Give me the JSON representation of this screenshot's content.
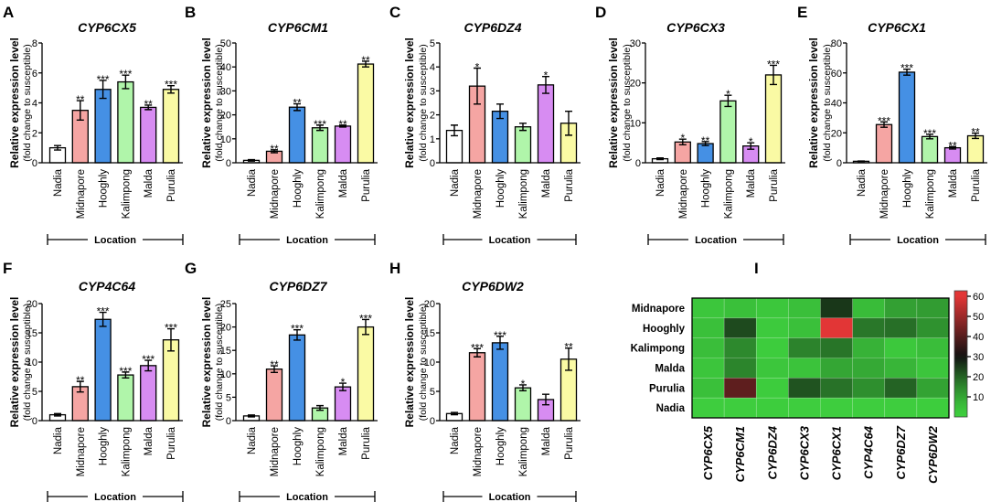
{
  "location_colors": {
    "Nadia": "#ffffff",
    "Midnapore": "#f5a5a3",
    "Hooghly": "#4590e4",
    "Kalimpong": "#b0f5aa",
    "Malda": "#d78cf2",
    "Purulia": "#fafaa4"
  },
  "chart_data": [
    {
      "panel": "A",
      "type": "bar",
      "title": "CYP6CX5",
      "categories": [
        "Nadia",
        "Midnapore",
        "Hooghly",
        "Kalimpong",
        "Malda",
        "Purulia"
      ],
      "values": [
        1.0,
        3.5,
        4.9,
        5.4,
        3.7,
        4.9
      ],
      "errors": [
        0.15,
        0.65,
        0.6,
        0.45,
        0.15,
        0.25
      ],
      "significance": [
        "",
        "**",
        "***",
        "***",
        "**",
        "***"
      ],
      "ylabel": "Relative expression level",
      "ylabel_sub": "(fold change to susceptible)",
      "xlabel": "Location",
      "ylim": [
        0,
        8
      ],
      "yticks": [
        0,
        2,
        4,
        6,
        8
      ]
    },
    {
      "panel": "B",
      "type": "bar",
      "title": "CYP6CM1",
      "categories": [
        "Nadia",
        "Midnapore",
        "Hooghly",
        "Kalimpong",
        "Malda",
        "Purulia"
      ],
      "values": [
        1.0,
        4.8,
        23.2,
        14.6,
        15.3,
        41.2
      ],
      "errors": [
        0.3,
        0.6,
        1.4,
        1.1,
        0.4,
        1.2
      ],
      "significance": [
        "",
        "**",
        "**",
        "***",
        "**",
        "**"
      ],
      "ylabel": "Relative expression level",
      "ylabel_sub": "(fold change to susceptible)",
      "xlabel": "Location",
      "ylim": [
        0,
        50
      ],
      "yticks": [
        0,
        10,
        20,
        30,
        40,
        50
      ]
    },
    {
      "panel": "C",
      "type": "bar",
      "title": "CYP6DZ4",
      "categories": [
        "Nadia",
        "Midnapore",
        "Hooghly",
        "Kalimpong",
        "Malda",
        "Purulia"
      ],
      "values": [
        1.35,
        3.2,
        2.15,
        1.5,
        3.25,
        1.65
      ],
      "errors": [
        0.22,
        0.75,
        0.3,
        0.15,
        0.35,
        0.5
      ],
      "significance": [
        "",
        "*",
        "",
        "",
        "*",
        ""
      ],
      "ylabel": "Relative expression level",
      "ylabel_sub": "(fold change to susceptible)",
      "xlabel": "Location",
      "ylim": [
        0,
        5
      ],
      "yticks": [
        0,
        1,
        2,
        3,
        4,
        5
      ]
    },
    {
      "panel": "D",
      "type": "bar",
      "title": "CYP6CX3",
      "categories": [
        "Nadia",
        "Midnapore",
        "Hooghly",
        "Kalimpong",
        "Malda",
        "Purulia"
      ],
      "values": [
        1.0,
        5.2,
        4.8,
        15.5,
        4.2,
        22.0
      ],
      "errors": [
        0.2,
        0.7,
        0.5,
        1.4,
        0.8,
        2.4
      ],
      "significance": [
        "",
        "*",
        "**",
        "*",
        "*",
        "***"
      ],
      "ylabel": "Relative expression level",
      "ylabel_sub": "(fold change to susceptible)",
      "xlabel": "Location",
      "ylim": [
        0,
        30
      ],
      "yticks": [
        0,
        10,
        20,
        30
      ]
    },
    {
      "panel": "E",
      "type": "bar",
      "title": "CYP6CX1",
      "categories": [
        "Nadia",
        "Midnapore",
        "Hooghly",
        "Kalimpong",
        "Malda",
        "Purulia"
      ],
      "values": [
        1.0,
        25.5,
        60.5,
        17.5,
        10.0,
        18.0
      ],
      "errors": [
        0.2,
        1.8,
        2.0,
        1.5,
        0.8,
        1.8
      ],
      "significance": [
        "",
        "***",
        "***",
        "***",
        "**",
        "**"
      ],
      "ylabel": "Relative expression level",
      "ylabel_sub": "(fold change to susceptible)",
      "xlabel": "Location",
      "ylim": [
        0,
        80
      ],
      "yticks": [
        0,
        20,
        40,
        60,
        80
      ]
    },
    {
      "panel": "F",
      "type": "bar",
      "title": "CYP4C64",
      "categories": [
        "Nadia",
        "Midnapore",
        "Hooghly",
        "Kalimpong",
        "Malda",
        "Purulia"
      ],
      "values": [
        1.0,
        5.8,
        17.3,
        7.8,
        9.4,
        13.8
      ],
      "errors": [
        0.2,
        0.9,
        1.2,
        0.5,
        0.9,
        1.9
      ],
      "significance": [
        "",
        "**",
        "***",
        "***",
        "***",
        "***"
      ],
      "ylabel": "Relative expression level",
      "ylabel_sub": "(fold change to susceptible)",
      "xlabel": "Location",
      "ylim": [
        0,
        20
      ],
      "yticks": [
        0,
        5,
        10,
        15,
        20
      ]
    },
    {
      "panel": "G",
      "type": "bar",
      "title": "CYP6DZ7",
      "categories": [
        "Nadia",
        "Midnapore",
        "Hooghly",
        "Kalimpong",
        "Malda",
        "Purulia"
      ],
      "values": [
        1.0,
        11.0,
        18.3,
        2.7,
        7.2,
        20.0
      ],
      "errors": [
        0.2,
        0.7,
        1.1,
        0.5,
        0.8,
        1.6
      ],
      "significance": [
        "",
        "**",
        "***",
        "",
        "*",
        "***"
      ],
      "ylabel": "Relative expression level",
      "ylabel_sub": "(fold change to susceptible)",
      "xlabel": "Location",
      "ylim": [
        0,
        25
      ],
      "yticks": [
        0,
        5,
        10,
        15,
        20,
        25
      ]
    },
    {
      "panel": "H",
      "type": "bar",
      "title": "CYP6DW2",
      "categories": [
        "Nadia",
        "Midnapore",
        "Hooghly",
        "Kalimpong",
        "Malda",
        "Purulia"
      ],
      "values": [
        1.2,
        11.6,
        13.3,
        5.6,
        3.6,
        10.5
      ],
      "errors": [
        0.2,
        0.7,
        1.1,
        0.5,
        0.9,
        1.9
      ],
      "significance": [
        "",
        "***",
        "***",
        "*",
        "",
        "**"
      ],
      "ylabel": "Relative expression level",
      "ylabel_sub": "(fold change to susceptible)",
      "xlabel": "Location",
      "ylim": [
        0,
        20
      ],
      "yticks": [
        0,
        5,
        10,
        15,
        20
      ]
    },
    {
      "panel": "I",
      "type": "heatmap",
      "rows": [
        "Midnapore",
        "Hooghly",
        "Kalimpong",
        "Malda",
        "Purulia",
        "Nadia"
      ],
      "columns": [
        "CYP6CX5",
        "CYP6CM1",
        "CYP6DZ4",
        "CYP6CX3",
        "CYP6CX1",
        "CYP4C64",
        "CYP6DZ7",
        "CYP6DW2"
      ],
      "values": [
        [
          3.5,
          4.8,
          3.2,
          5.2,
          25.5,
          5.8,
          11.0,
          11.6
        ],
        [
          4.9,
          23.2,
          2.15,
          4.8,
          60.5,
          17.3,
          18.3,
          13.3
        ],
        [
          5.4,
          14.6,
          1.5,
          15.5,
          17.5,
          7.8,
          2.7,
          5.6
        ],
        [
          3.7,
          15.3,
          3.25,
          4.2,
          10.0,
          9.4,
          7.2,
          3.6
        ],
        [
          4.9,
          41.2,
          1.65,
          22.0,
          18.0,
          13.8,
          20.0,
          10.5
        ],
        [
          1.0,
          1.0,
          1.35,
          1.0,
          1.0,
          1.0,
          1.0,
          1.2
        ]
      ],
      "colorbar": {
        "ticks": [
          10,
          20,
          30,
          40,
          50,
          60
        ],
        "range": [
          0,
          60
        ]
      },
      "colorscale": {
        "low": "#3ecf3e",
        "mid": "#101010",
        "high": "#e23636"
      }
    }
  ]
}
